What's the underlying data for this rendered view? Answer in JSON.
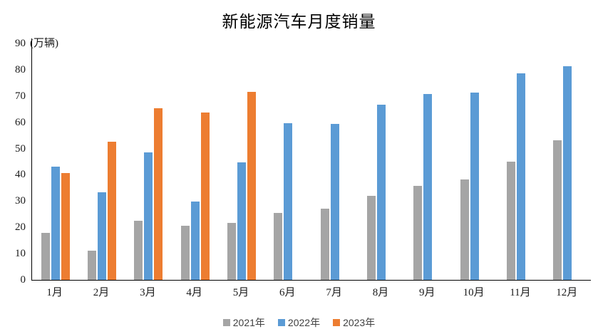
{
  "title": "新能源汽车月度销量",
  "axis": {
    "unit_label": "(万辆)",
    "yticks": [
      0,
      10,
      20,
      30,
      40,
      50,
      60,
      70,
      80,
      90
    ]
  },
  "chart_data": {
    "type": "bar",
    "title": "新能源汽车月度销量",
    "ylabel": "万辆",
    "xlabel": "",
    "categories": [
      "1月",
      "2月",
      "3月",
      "4月",
      "5月",
      "6月",
      "7月",
      "8月",
      "9月",
      "10月",
      "11月",
      "12月"
    ],
    "series": [
      {
        "name": "2021年",
        "color": "#A5A5A5",
        "values": [
          17.9,
          11.0,
          22.6,
          20.6,
          21.7,
          25.6,
          27.1,
          32.1,
          35.7,
          38.3,
          45.0,
          53.1
        ]
      },
      {
        "name": "2022年",
        "color": "#5B9BD5",
        "values": [
          43.1,
          33.4,
          48.4,
          29.9,
          44.7,
          59.6,
          59.3,
          66.6,
          70.8,
          71.4,
          78.6,
          81.4
        ]
      },
      {
        "name": "2023年",
        "color": "#ED7D31",
        "values": [
          40.8,
          52.5,
          65.3,
          63.6,
          71.7,
          null,
          null,
          null,
          null,
          null,
          null,
          null
        ]
      }
    ],
    "ylim": [
      0,
      90
    ],
    "ytick_step": 10,
    "grid": false,
    "legend_position": "bottom"
  },
  "legend": {
    "items": [
      {
        "label": "2021年",
        "color": "#A5A5A5"
      },
      {
        "label": "2022年",
        "color": "#5B9BD5"
      },
      {
        "label": "2023年",
        "color": "#ED7D31"
      }
    ]
  }
}
